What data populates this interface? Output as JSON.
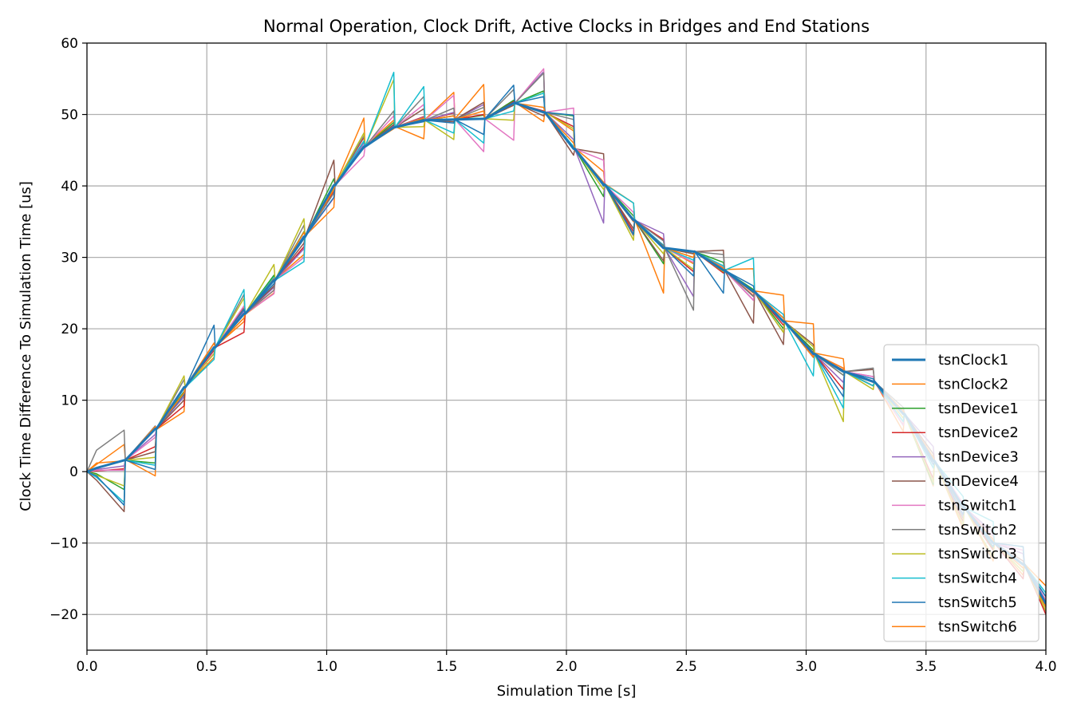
{
  "chart_data": {
    "type": "line",
    "title": "Normal Operation, Clock Drift, Active Clocks in Bridges and End Stations",
    "xlabel": "Simulation Time [s]",
    "ylabel": "Clock Time Difference To Simulation Time [us]",
    "xlim": [
      0.0,
      4.0
    ],
    "ylim": [
      -25,
      60
    ],
    "xticks": [
      "0.0",
      "0.5",
      "1.0",
      "1.5",
      "2.0",
      "2.5",
      "3.0",
      "3.5",
      "4.0"
    ],
    "yticks": [
      "−20",
      "−10",
      "0",
      "10",
      "20",
      "30",
      "40",
      "50",
      "60"
    ],
    "grid": true,
    "legend_position": "lower-right",
    "x": [
      0.0,
      0.04,
      0.155,
      0.16,
      0.285,
      0.29,
      0.405,
      0.41,
      0.53,
      0.535,
      0.655,
      0.66,
      0.78,
      0.785,
      0.905,
      0.91,
      1.03,
      1.035,
      1.155,
      1.16,
      1.28,
      1.285,
      1.405,
      1.41,
      1.53,
      1.535,
      1.655,
      1.66,
      1.78,
      1.785,
      1.905,
      1.91,
      2.03,
      2.035,
      2.155,
      2.16,
      2.28,
      2.285,
      2.405,
      2.41,
      2.53,
      2.535,
      2.655,
      2.66,
      2.78,
      2.785,
      2.905,
      2.91,
      3.03,
      3.035,
      3.155,
      3.16,
      3.28,
      3.285,
      3.405,
      3.41,
      3.53,
      3.535,
      3.655,
      3.66,
      3.78,
      3.785,
      3.905,
      3.91,
      4.0
    ],
    "series": [
      {
        "name": "tsnClock1",
        "color": "#1f77b4",
        "width": 3,
        "values": [
          0.0,
          0.5,
          1.6,
          1.6,
          6.0,
          6.0,
          11.8,
          11.8,
          17.4,
          17.4,
          22.1,
          22.1,
          26.8,
          26.8,
          32.9,
          32.9,
          40.1,
          40.1,
          45.5,
          45.5,
          48.2,
          48.2,
          49.2,
          49.2,
          49.3,
          49.3,
          49.4,
          49.4,
          51.6,
          51.6,
          50.3,
          50.3,
          45.2,
          45.2,
          40.2,
          40.2,
          35.2,
          35.2,
          31.3,
          31.3,
          30.8,
          30.8,
          28.2,
          28.2,
          25.2,
          25.2,
          21.0,
          21.0,
          16.5,
          16.5,
          14.0,
          14.0,
          12.6,
          12.6,
          8.1,
          8.1,
          1.5,
          1.5,
          -5.0,
          -5.0,
          -10.0,
          -10.0,
          -13.0,
          -13.0,
          -18.5
        ]
      },
      {
        "name": "tsnClock2",
        "color": "#ff7f0e",
        "width": 1.5,
        "values": [
          0.0,
          1.0,
          3.8,
          1.7,
          -0.6,
          5.9,
          8.4,
          11.8,
          16.0,
          17.5,
          21.0,
          22.0,
          25.0,
          26.9,
          30.4,
          33.0,
          37.0,
          40.1,
          49.5,
          45.6,
          49.2,
          48.3,
          46.6,
          49.3,
          53.1,
          49.4,
          54.2,
          49.5,
          51.8,
          51.7,
          49.0,
          50.4,
          47.7,
          45.3,
          42.0,
          40.3,
          37.6,
          35.3,
          25.0,
          31.4,
          29.1,
          30.9,
          27.9,
          28.3,
          28.4,
          25.3,
          24.7,
          21.1,
          20.7,
          16.6,
          15.8,
          14.1,
          12.0,
          12.7,
          5.6,
          8.2,
          -2.0,
          1.6,
          -8.0,
          -4.9,
          -12.5,
          -9.9,
          -14.5,
          -12.9,
          -16.0
        ]
      },
      {
        "name": "tsnDevice1",
        "color": "#2ca02c",
        "width": 1.5,
        "values": [
          0.0,
          -0.3,
          -2.5,
          1.6,
          1.2,
          6.0,
          11.2,
          11.8,
          17.0,
          17.4,
          22.6,
          22.1,
          27.5,
          26.8,
          33.6,
          32.9,
          41.0,
          40.1,
          46.2,
          45.5,
          48.9,
          48.2,
          49.4,
          49.2,
          49.8,
          49.3,
          49.9,
          49.4,
          52.0,
          51.6,
          53.3,
          50.3,
          49.8,
          45.2,
          38.5,
          40.2,
          35.8,
          35.2,
          29.1,
          31.3,
          30.5,
          30.8,
          29.3,
          28.2,
          25.5,
          25.2,
          20.0,
          21.0,
          17.0,
          16.5,
          13.5,
          14.0,
          12.0,
          12.6,
          6.5,
          8.1,
          -1.8,
          1.5,
          -6.5,
          -5.0,
          -10.8,
          -10.0,
          -14.0,
          -13.0,
          -19.0
        ]
      },
      {
        "name": "tsnDevice2",
        "color": "#d62728",
        "width": 1.5,
        "values": [
          0.0,
          0.1,
          0.4,
          1.6,
          3.5,
          6.0,
          9.2,
          11.8,
          17.0,
          17.4,
          19.5,
          22.1,
          25.4,
          26.8,
          31.5,
          32.9,
          39.2,
          40.1,
          46.8,
          45.5,
          48.5,
          48.2,
          49.7,
          49.2,
          50.2,
          49.3,
          50.0,
          49.4,
          51.8,
          51.6,
          50.5,
          50.3,
          48.3,
          45.2,
          40.4,
          40.2,
          33.6,
          35.2,
          32.5,
          31.3,
          28.0,
          30.8,
          27.8,
          28.2,
          24.6,
          25.2,
          20.5,
          21.0,
          16.7,
          16.5,
          11.5,
          14.0,
          12.0,
          12.6,
          6.5,
          8.1,
          -1.0,
          1.5,
          -7.0,
          -5.0,
          -11.0,
          -10.0,
          -15.0,
          -13.0,
          -20.0
        ]
      },
      {
        "name": "tsnDevice3",
        "color": "#9467bd",
        "width": 1.5,
        "values": [
          0.0,
          0.3,
          0.8,
          1.6,
          5.2,
          6.0,
          10.5,
          11.8,
          17.2,
          17.4,
          22.5,
          22.1,
          25.8,
          26.8,
          31.2,
          32.9,
          39.9,
          40.1,
          46.0,
          45.5,
          48.5,
          48.2,
          49.6,
          49.2,
          50.3,
          49.3,
          51.4,
          49.4,
          51.5,
          51.6,
          56.0,
          50.3,
          46.5,
          45.2,
          34.8,
          40.2,
          35.0,
          35.2,
          33.3,
          31.3,
          24.5,
          30.8,
          28.5,
          28.2,
          24.0,
          25.2,
          19.5,
          21.0,
          16.3,
          16.5,
          12.5,
          14.0,
          13.3,
          12.6,
          7.0,
          8.1,
          3.5,
          1.5,
          -6.3,
          -5.0,
          -8.5,
          -10.0,
          -11.5,
          -13.0,
          -18.7
        ]
      },
      {
        "name": "tsnDevice4",
        "color": "#8c564b",
        "width": 1.5,
        "values": [
          0.0,
          -1.2,
          -5.6,
          1.6,
          2.8,
          6.0,
          10.0,
          11.8,
          18.0,
          17.4,
          23.0,
          22.1,
          26.0,
          26.8,
          32.0,
          32.9,
          43.6,
          40.1,
          45.6,
          45.5,
          48.6,
          48.2,
          50.8,
          49.2,
          49.0,
          49.3,
          51.7,
          49.4,
          51.3,
          51.6,
          49.8,
          50.3,
          44.3,
          45.2,
          44.5,
          40.2,
          34.0,
          35.2,
          29.5,
          31.3,
          30.5,
          30.8,
          31.0,
          28.2,
          20.8,
          25.2,
          17.8,
          21.0,
          17.8,
          16.5,
          14.2,
          14.0,
          14.3,
          12.6,
          8.5,
          8.1,
          2.5,
          1.5,
          -4.5,
          -5.0,
          -9.5,
          -10.0,
          -12.5,
          -13.0,
          -18.0
        ]
      },
      {
        "name": "tsnSwitch1",
        "color": "#e377c2",
        "width": 1.5,
        "values": [
          0.0,
          0.2,
          0.2,
          1.6,
          4.8,
          6.0,
          11.0,
          11.8,
          16.6,
          17.4,
          23.2,
          22.1,
          24.9,
          26.8,
          30.0,
          32.9,
          38.3,
          40.1,
          44.2,
          45.5,
          49.8,
          48.2,
          51.4,
          49.2,
          52.7,
          49.3,
          44.8,
          49.4,
          46.4,
          51.6,
          56.4,
          50.3,
          50.9,
          45.2,
          43.6,
          40.2,
          36.3,
          35.2,
          31.4,
          31.3,
          29.3,
          30.8,
          28.6,
          28.2,
          24.0,
          25.2,
          22.0,
          21.0,
          16.0,
          16.5,
          14.5,
          14.0,
          13.3,
          12.6,
          6.5,
          8.1,
          0.5,
          1.5,
          -4.5,
          -5.0,
          -9.0,
          -10.0,
          -11.0,
          -13.0,
          -18.0
        ]
      },
      {
        "name": "tsnSwitch2",
        "color": "#7f7f7f",
        "width": 1.5,
        "values": [
          0.0,
          3.0,
          5.8,
          1.6,
          6.4,
          6.0,
          12.9,
          11.8,
          17.4,
          17.4,
          24.8,
          22.1,
          25.4,
          26.8,
          34.5,
          32.9,
          39.0,
          40.1,
          47.0,
          45.5,
          50.5,
          48.2,
          52.5,
          49.2,
          50.9,
          49.3,
          51.0,
          49.4,
          53.5,
          51.6,
          55.8,
          50.3,
          49.3,
          45.2,
          40.5,
          40.2,
          33.0,
          35.2,
          32.3,
          31.3,
          22.6,
          30.8,
          30.4,
          28.2,
          24.5,
          25.2,
          21.0,
          21.0,
          16.0,
          16.5,
          13.5,
          14.0,
          14.5,
          12.6,
          9.0,
          8.1,
          1.5,
          1.5,
          -5.5,
          -5.0,
          -10.0,
          -10.0,
          -13.5,
          -13.0,
          -18.8
        ]
      },
      {
        "name": "tsnSwitch3",
        "color": "#bcbd22",
        "width": 1.5,
        "values": [
          0.0,
          -0.5,
          -2.0,
          1.6,
          2.0,
          6.0,
          13.4,
          11.8,
          16.5,
          17.4,
          24.3,
          22.1,
          29.0,
          26.8,
          35.4,
          32.9,
          39.8,
          40.1,
          47.4,
          45.5,
          54.9,
          48.2,
          48.3,
          49.2,
          46.5,
          49.3,
          49.3,
          49.4,
          49.2,
          51.6,
          53.0,
          50.3,
          48.0,
          45.2,
          39.5,
          40.2,
          32.4,
          35.2,
          30.5,
          31.3,
          28.3,
          30.8,
          28.0,
          28.2,
          25.2,
          25.2,
          19.5,
          21.0,
          17.5,
          16.5,
          7.0,
          14.0,
          11.5,
          12.6,
          7.5,
          8.1,
          -1.5,
          1.5,
          -7.5,
          -5.0,
          -12.0,
          -10.0,
          -14.0,
          -13.0,
          -19.5
        ]
      },
      {
        "name": "tsnSwitch4",
        "color": "#17becf",
        "width": 1.5,
        "values": [
          0.0,
          -0.8,
          -4.3,
          1.6,
          0.9,
          6.0,
          11.9,
          11.8,
          15.7,
          17.4,
          25.5,
          22.1,
          27.2,
          26.8,
          29.4,
          32.9,
          40.2,
          40.1,
          46.3,
          45.5,
          55.9,
          48.2,
          53.9,
          49.2,
          47.4,
          49.3,
          46.0,
          49.4,
          50.5,
          51.6,
          53.0,
          50.3,
          45.5,
          45.2,
          40.0,
          40.2,
          37.6,
          35.2,
          31.7,
          31.3,
          29.6,
          30.8,
          28.8,
          28.2,
          29.9,
          25.2,
          22.0,
          21.0,
          13.4,
          16.5,
          8.9,
          14.0,
          12.0,
          12.6,
          7.0,
          8.1,
          0.5,
          1.5,
          -3.5,
          -5.0,
          -7.0,
          -10.0,
          -10.5,
          -13.0,
          -17.0
        ]
      },
      {
        "name": "tsnSwitch5",
        "color": "#1f77b4",
        "width": 1.5,
        "values": [
          0.0,
          -0.6,
          -4.7,
          1.6,
          0.3,
          6.0,
          10.8,
          11.8,
          20.5,
          17.4,
          22.7,
          22.1,
          26.3,
          26.8,
          32.6,
          32.9,
          38.4,
          40.1,
          45.3,
          45.5,
          48.1,
          48.2,
          49.0,
          49.2,
          48.8,
          49.3,
          47.2,
          49.4,
          54.1,
          51.6,
          52.5,
          50.3,
          49.9,
          45.2,
          40.0,
          40.2,
          33.2,
          35.2,
          31.6,
          31.3,
          27.4,
          30.8,
          25.0,
          28.2,
          26.0,
          25.2,
          21.5,
          21.0,
          16.5,
          16.5,
          10.5,
          14.0,
          13.0,
          12.6,
          8.0,
          8.1,
          1.0,
          1.5,
          -6.0,
          -5.0,
          -10.5,
          -10.0,
          -10.5,
          -13.0,
          -17.5
        ]
      },
      {
        "name": "tsnSwitch6",
        "color": "#ff7f0e",
        "width": 1.5,
        "values": [
          0.0,
          1.2,
          1.5,
          1.6,
          6.3,
          6.0,
          11.0,
          11.8,
          18.0,
          17.4,
          21.5,
          22.1,
          27.0,
          26.8,
          33.5,
          32.9,
          39.5,
          40.1,
          45.5,
          45.5,
          48.0,
          48.2,
          49.5,
          49.2,
          49.8,
          49.3,
          50.5,
          49.4,
          51.5,
          51.6,
          51.0,
          50.3,
          46.0,
          45.2,
          40.5,
          40.2,
          35.0,
          35.2,
          31.5,
          31.3,
          30.0,
          30.8,
          28.5,
          28.2,
          25.0,
          25.2,
          21.5,
          21.0,
          16.0,
          16.5,
          14.5,
          14.0,
          12.5,
          12.6,
          8.5,
          8.1,
          2.0,
          1.5,
          -5.0,
          -5.0,
          -9.5,
          -10.0,
          -13.5,
          -13.0,
          -19.0
        ]
      }
    ]
  }
}
